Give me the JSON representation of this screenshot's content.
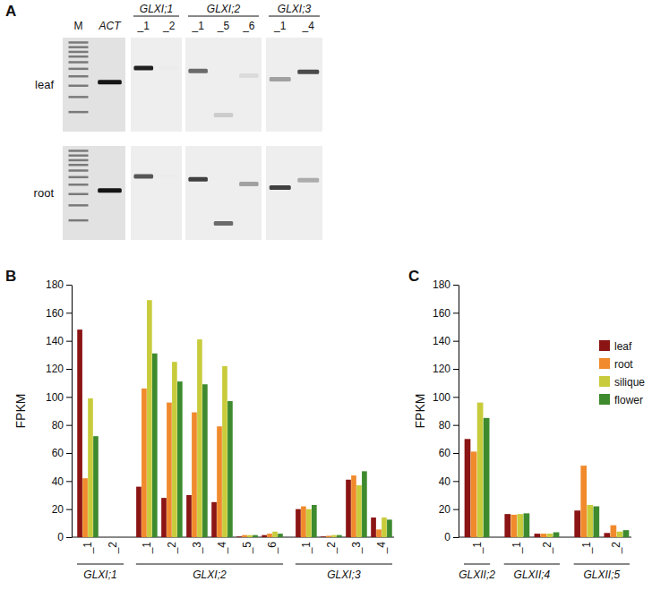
{
  "gel": {
    "label": "A",
    "header_groups": [
      {
        "name": null,
        "lanes": [
          "M",
          "ACT"
        ]
      },
      {
        "name": "GLXI;1",
        "lanes": [
          "_1",
          "_2"
        ]
      },
      {
        "name": "GLXI;2",
        "lanes": [
          "_1",
          "_5",
          "_6"
        ]
      },
      {
        "name": "GLXI;3",
        "lanes": [
          "_1",
          "_4"
        ]
      }
    ],
    "migration": [
      null,
      0.45,
      0.3,
      0.3,
      0.33,
      0.8,
      0.38,
      0.42,
      0.34
    ],
    "rows": [
      {
        "label": "leaf",
        "intensity": [
          null,
          1,
          0.95,
          0,
          0.6,
          0.15,
          0.08,
          0.35,
          0.75
        ]
      },
      {
        "label": "root",
        "intensity": [
          null,
          1,
          0.7,
          0,
          0.8,
          0.6,
          0.35,
          0.8,
          0.3
        ]
      }
    ]
  },
  "chart_data": [
    {
      "type": "bar",
      "title": "B",
      "y_label": "FPKM",
      "groups": [
        {
          "name": "GLXI;1",
          "categories": [
            "_1",
            "_2"
          ]
        },
        {
          "name": "GLXI;2",
          "categories": [
            "_1",
            "_2",
            "_3",
            "_4",
            "_5",
            "_6"
          ]
        },
        {
          "name": "GLXI;3",
          "categories": [
            "_1",
            "_2",
            "_3",
            "_4"
          ]
        }
      ],
      "series": [
        {
          "color": "#8b1414",
          "values": [
            148,
            0,
            36,
            28,
            30,
            25,
            0.5,
            1.5,
            20,
            0.5,
            41,
            14
          ]
        },
        {
          "color": "#f08a2c",
          "values": [
            42,
            0,
            106,
            96,
            89,
            79,
            1.5,
            2.5,
            22,
            1,
            44,
            5.5
          ]
        },
        {
          "color": "#c8cc3c",
          "values": [
            99,
            0,
            169,
            125,
            141,
            122,
            1.5,
            4,
            20,
            1.5,
            37,
            14
          ]
        },
        {
          "color": "#3e8a2e",
          "values": [
            72,
            0,
            131,
            111,
            109,
            97,
            1.5,
            2.5,
            23,
            1.5,
            47,
            12.5
          ]
        }
      ],
      "ylim": [
        0,
        180
      ],
      "yticks": [
        0,
        20,
        40,
        60,
        80,
        100,
        120,
        140,
        160,
        180
      ]
    },
    {
      "type": "bar",
      "title": "C",
      "y_label": "FPKM",
      "groups": [
        {
          "name": "GLXII;2",
          "categories": [
            "_1"
          ]
        },
        {
          "name": "GLXII;4",
          "categories": [
            "_1",
            "_2"
          ]
        },
        {
          "name": "GLXII;5",
          "categories": [
            "_1",
            "_2"
          ]
        }
      ],
      "series": [
        {
          "name": "leaf",
          "color": "#8b1414",
          "values": [
            70,
            16.5,
            2.5,
            19,
            3
          ]
        },
        {
          "name": "root",
          "color": "#f08a2c",
          "values": [
            61,
            16,
            2.5,
            51,
            8.5
          ]
        },
        {
          "name": "silique",
          "color": "#c8cc3c",
          "values": [
            96,
            16.5,
            2.5,
            23,
            4
          ]
        },
        {
          "name": "flower",
          "color": "#3e8a2e",
          "values": [
            85,
            17,
            3.5,
            22,
            5
          ]
        }
      ],
      "ylim": [
        0,
        180
      ],
      "yticks": [
        0,
        20,
        40,
        60,
        80,
        100,
        120,
        140,
        160,
        180
      ],
      "legend": "top-right"
    }
  ]
}
